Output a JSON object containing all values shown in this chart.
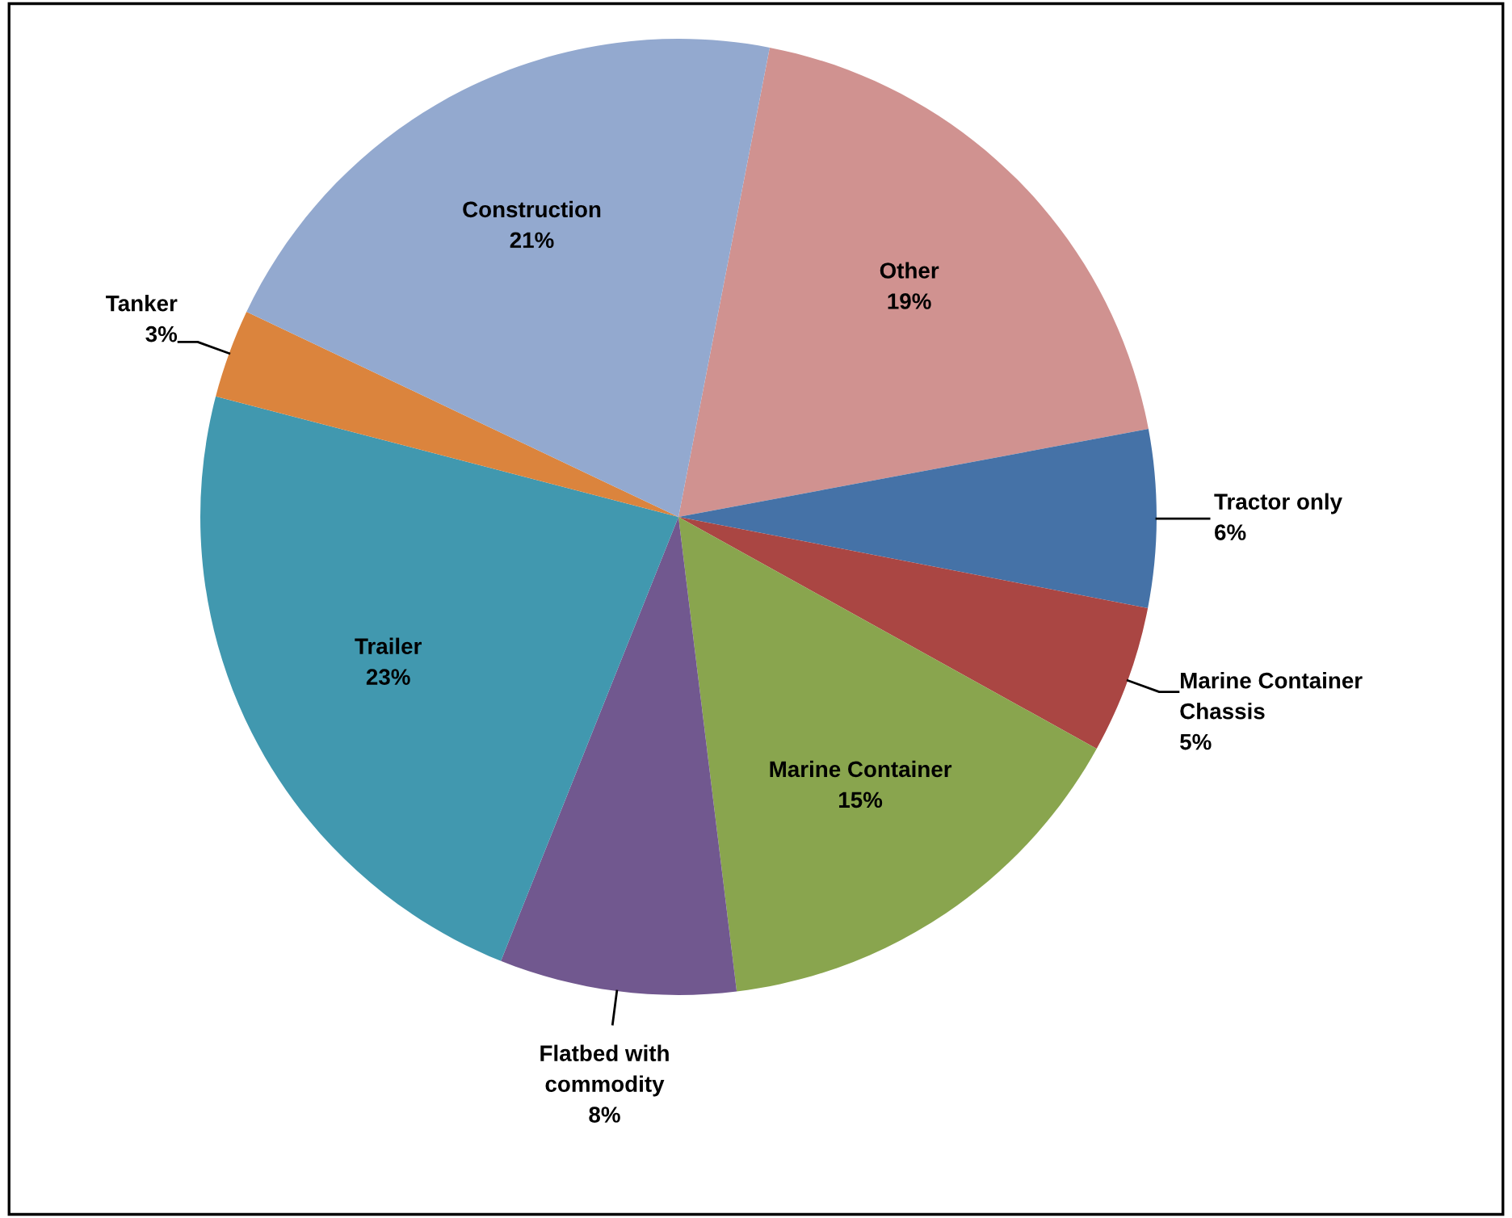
{
  "chart_data": {
    "type": "pie",
    "categories": [
      "Other",
      "Tractor only",
      "Marine Container Chassis",
      "Marine Container",
      "Flatbed with commodity",
      "Trailer",
      "Tanker",
      "Construction"
    ],
    "values": [
      19,
      6,
      5,
      15,
      8,
      23,
      3,
      21
    ],
    "colors": [
      "#d09290",
      "#4572a7",
      "#aa4643",
      "#89a54e",
      "#71588f",
      "#4198af",
      "#db843d",
      "#93a9cf"
    ],
    "value_labels": [
      "19%",
      "6%",
      "5%",
      "15%",
      "8%",
      "23%",
      "3%",
      "21%"
    ]
  }
}
